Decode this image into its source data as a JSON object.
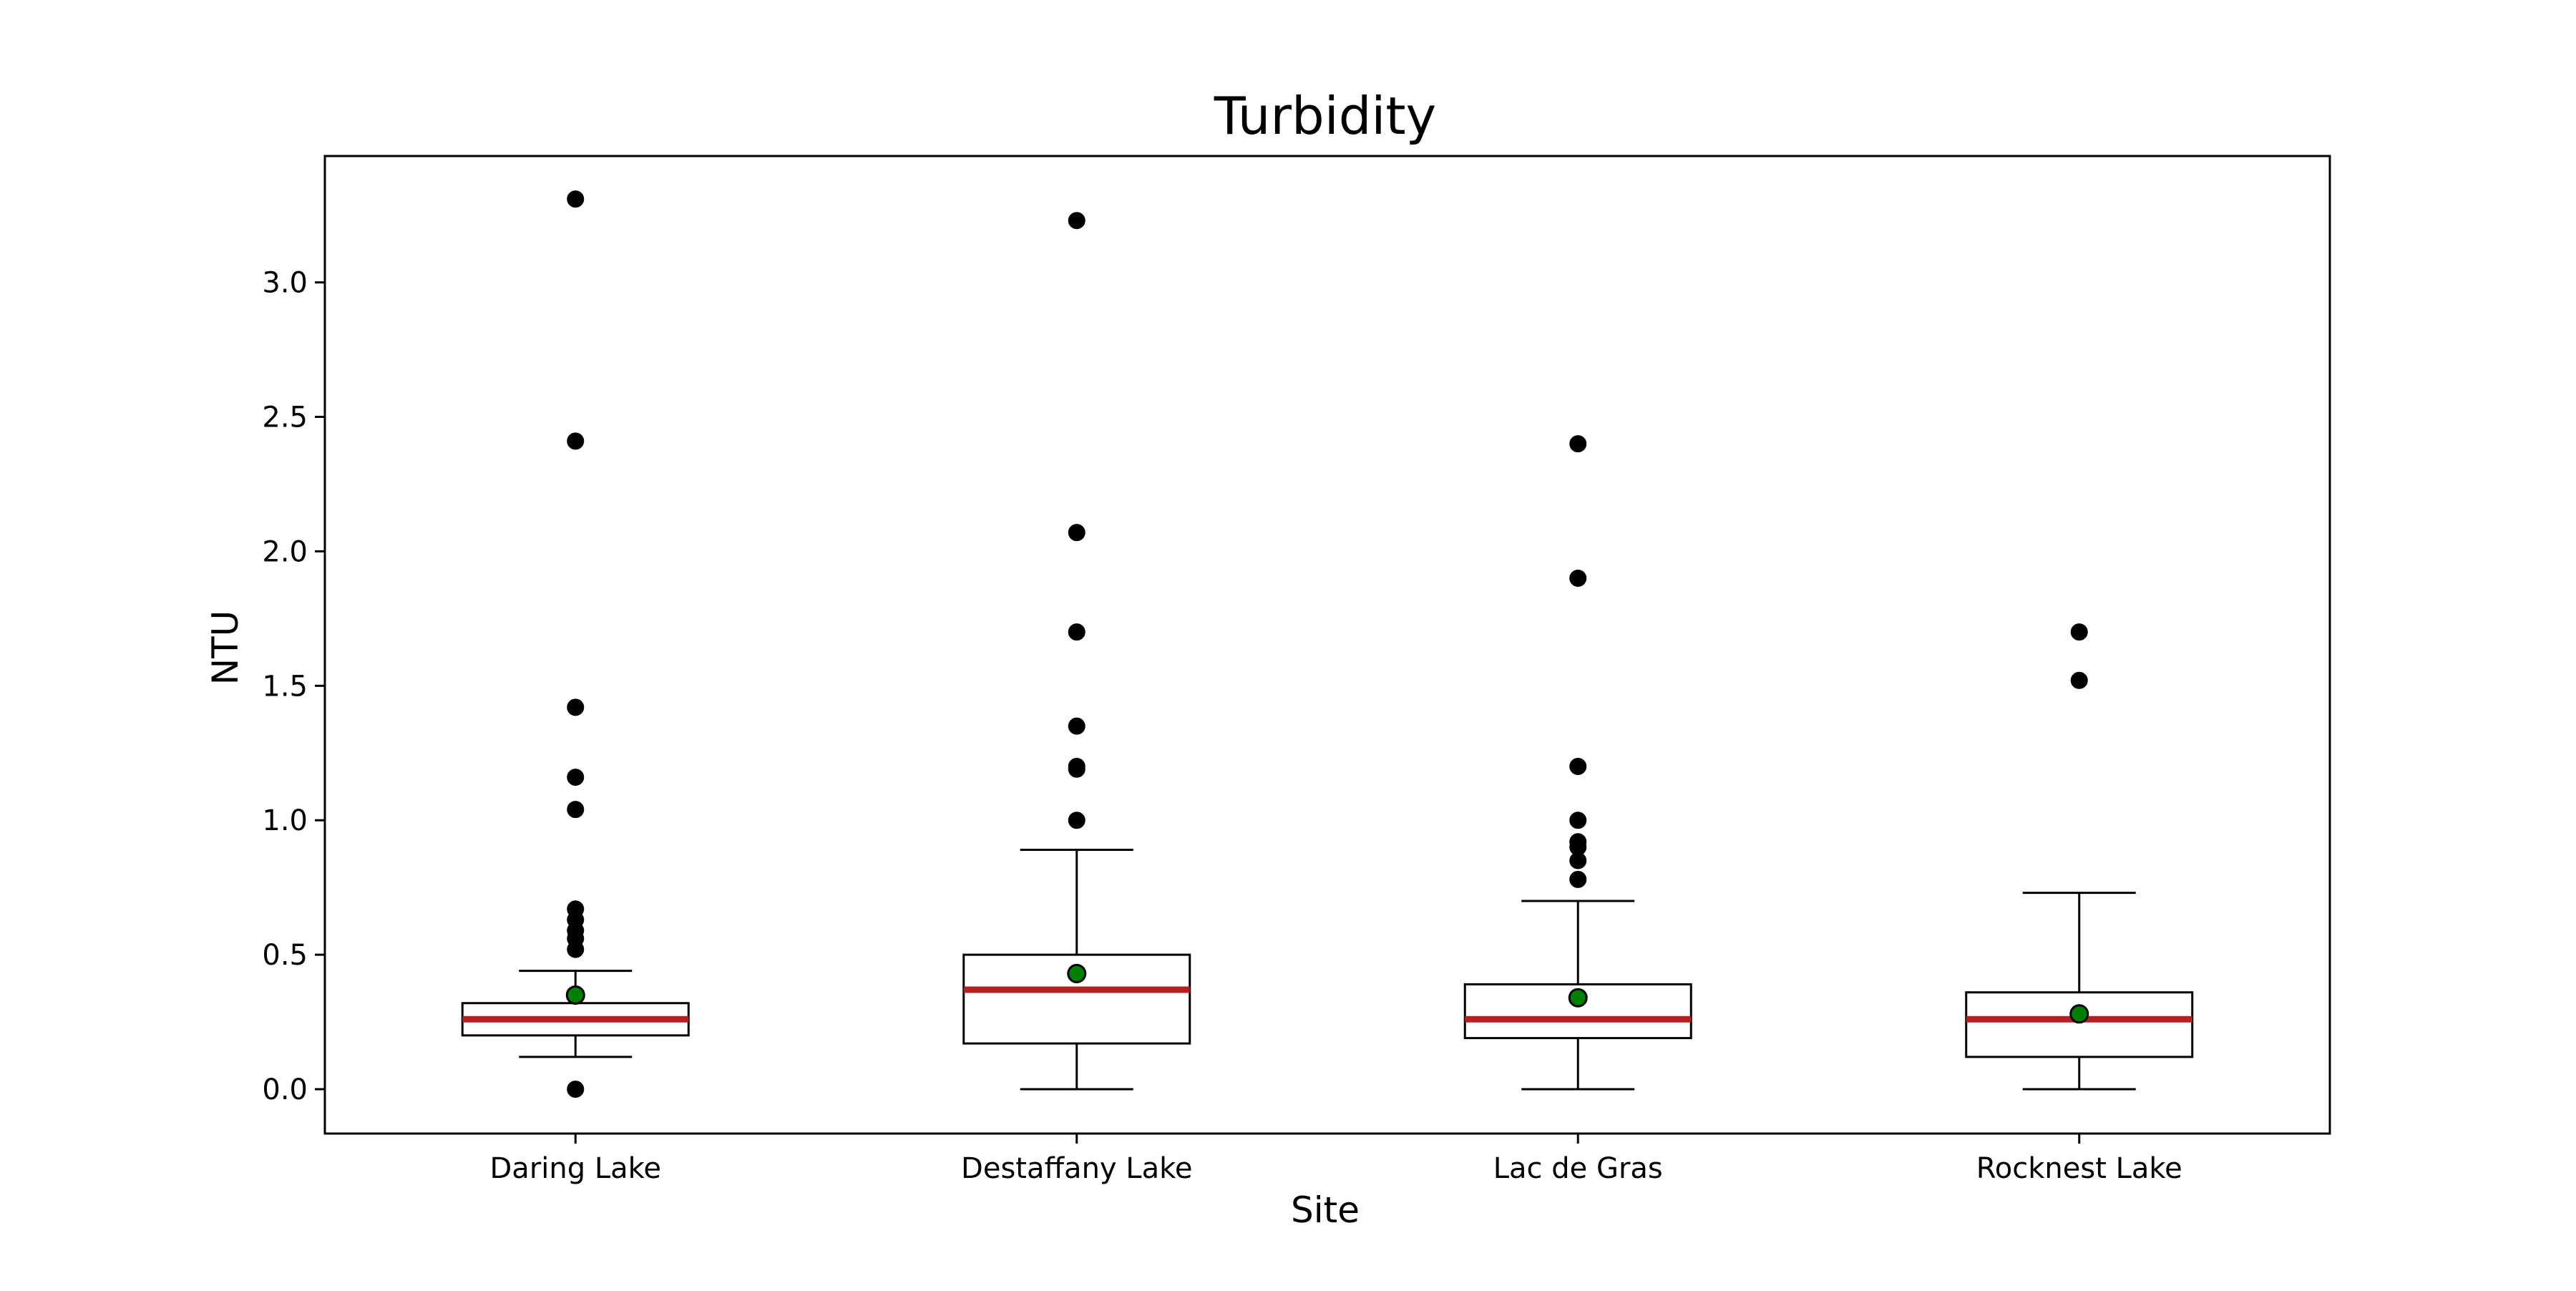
{
  "chart_data": {
    "type": "box",
    "title": "Turbidity",
    "xlabel": "Site",
    "ylabel": "NTU",
    "ylim": [
      -0.165,
      3.47
    ],
    "y_ticks": [
      0.0,
      0.5,
      1.0,
      1.5,
      2.0,
      2.5,
      3.0
    ],
    "y_tick_labels": [
      "0.0",
      "0.5",
      "1.0",
      "1.5",
      "2.0",
      "2.5",
      "3.0"
    ],
    "grid": false,
    "legend": "none",
    "categories": [
      "Daring Lake",
      "Destaffany Lake",
      "Lac de Gras",
      "Rocknest Lake"
    ],
    "boxes": [
      {
        "category": "Daring Lake",
        "whisker_low": 0.12,
        "q1": 0.2,
        "median": 0.26,
        "q3": 0.32,
        "whisker_high": 0.44,
        "mean": 0.35,
        "outliers": [
          0.0,
          0.52,
          0.56,
          0.59,
          0.63,
          0.67,
          1.04,
          1.16,
          1.42,
          2.41,
          3.31
        ]
      },
      {
        "category": "Destaffany Lake",
        "whisker_low": 0.0,
        "q1": 0.17,
        "median": 0.37,
        "q3": 0.5,
        "whisker_high": 0.89,
        "mean": 0.43,
        "outliers": [
          1.0,
          1.19,
          1.2,
          1.35,
          1.7,
          2.07,
          3.23
        ]
      },
      {
        "category": "Lac de Gras",
        "whisker_low": 0.0,
        "q1": 0.19,
        "median": 0.26,
        "q3": 0.39,
        "whisker_high": 0.7,
        "mean": 0.34,
        "outliers": [
          0.78,
          0.85,
          0.9,
          0.92,
          1.0,
          1.2,
          1.9,
          2.4
        ]
      },
      {
        "category": "Rocknest Lake",
        "whisker_low": 0.0,
        "q1": 0.12,
        "median": 0.26,
        "q3": 0.36,
        "whisker_high": 0.73,
        "mean": 0.28,
        "outliers": [
          1.52,
          1.7
        ]
      }
    ],
    "colors": {
      "box_edge": "#000000",
      "box_fill": "#ffffff",
      "median": "#b22222",
      "mean_marker": "#008000",
      "outlier": "#000000"
    }
  }
}
